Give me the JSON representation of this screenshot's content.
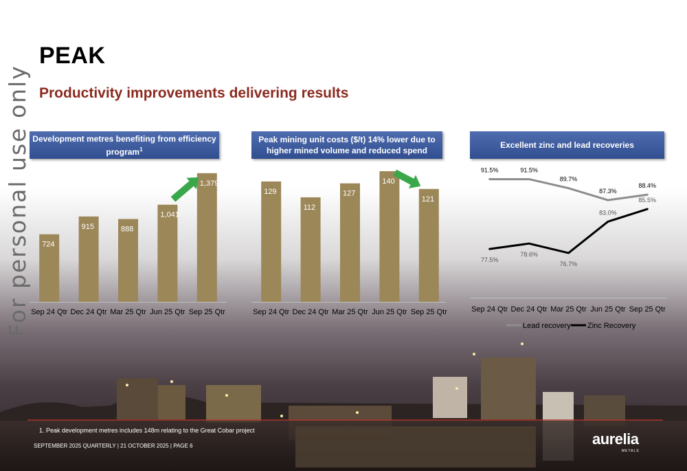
{
  "watermark": "For personal use only",
  "title": "PEAK",
  "subtitle": "Productivity improvements delivering results",
  "footnote": "1.    Peak development metres includes 148m relating to the Great Cobar project",
  "footer": "SEPTEMBER 2025 QUARTERLY  |  21 OCTOBER 2025  |  PAGE 6",
  "logo": {
    "name": "aurelia",
    "sub": "METALS"
  },
  "colors": {
    "bar": "#9c8759",
    "accent_red": "#8b2a1f",
    "header_blue": "#3a5a9c",
    "arrow_green": "#3aa84a",
    "lead_line": "#8c8c8c",
    "zinc_line": "#000000"
  },
  "chart_data": [
    {
      "type": "bar",
      "title": "Development metres benefiting from efficiency program",
      "title_sup": "1",
      "categories": [
        "Sep 24 Qtr",
        "Dec 24 Qtr",
        "Mar 25 Qtr",
        "Jun 25 Qtr",
        "Sep 25 Qtr"
      ],
      "values": [
        724,
        915,
        888,
        1041,
        1379
      ],
      "value_labels": [
        "724",
        "915",
        "888",
        "1,041",
        "1,379"
      ],
      "ylim": [
        0,
        1400
      ],
      "arrow": "up",
      "grid": false
    },
    {
      "type": "bar",
      "title": "Peak mining unit costs ($/t) 14% lower due to higher mined volume and reduced spend",
      "categories": [
        "Sep 24 Qtr",
        "Dec 24 Qtr",
        "Mar 25 Qtr",
        "Jun 25 Qtr",
        "Sep 25 Qtr"
      ],
      "values": [
        129,
        112,
        127,
        140,
        121
      ],
      "value_labels": [
        "129",
        "112",
        "127",
        "140",
        "121"
      ],
      "ylim": [
        0,
        140
      ],
      "arrow": "down",
      "grid": false
    },
    {
      "type": "line",
      "title": "Excellent zinc and lead recoveries",
      "categories": [
        "Sep 24 Qtr",
        "Dec 24 Qtr",
        "Mar 25 Qtr",
        "Jun 25 Qtr",
        "Sep 25 Qtr"
      ],
      "series": [
        {
          "name": "Lead recovery",
          "values": [
            91.5,
            91.5,
            89.7,
            87.3,
            88.4
          ],
          "labels": [
            "91.5%",
            "91.5%",
            "89.7%",
            "87.3%",
            "88.4%"
          ],
          "color": "#8c8c8c"
        },
        {
          "name": "Zinc Recovery",
          "values": [
            77.5,
            78.6,
            76.7,
            83.0,
            85.5
          ],
          "labels": [
            "77.5%",
            "78.6%",
            "76.7%",
            "83.0%",
            "85.5%"
          ],
          "color": "#000000"
        }
      ],
      "ylim": [
        72,
        96
      ],
      "legend": "bottom",
      "grid": false
    }
  ]
}
